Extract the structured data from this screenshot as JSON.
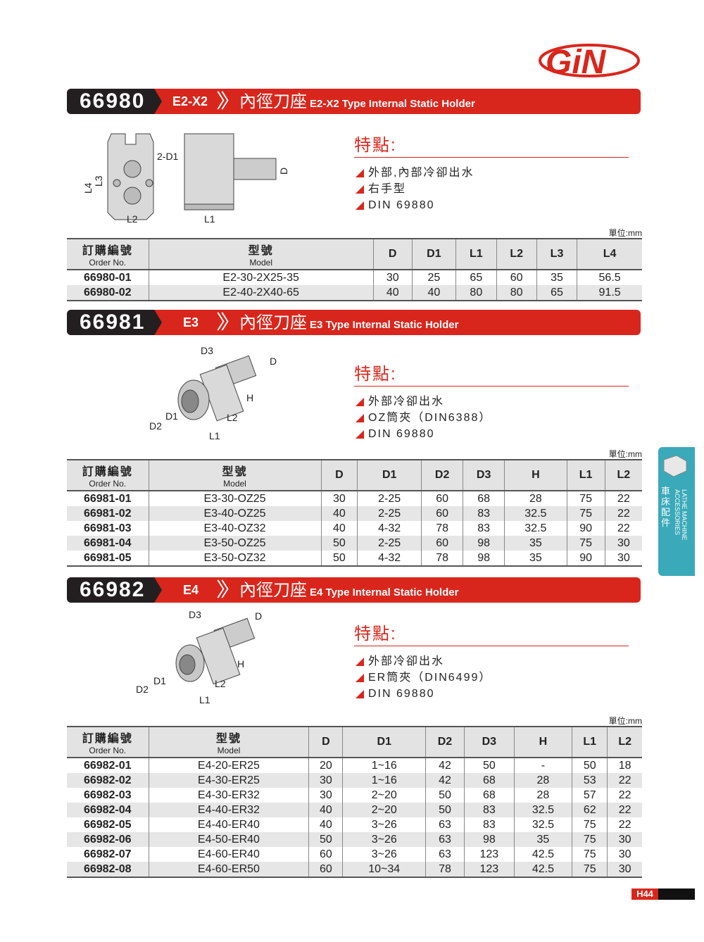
{
  "brand": {
    "logo": "GiN"
  },
  "sections": [
    {
      "number": "66980",
      "code": "E2-X2",
      "title_cn": "內徑刀座",
      "title_en": "E2-X2 Type Internal Static Holder",
      "features_title": "特點:",
      "features": [
        "外部,內部冷卻出水",
        "右手型",
        "DIN 69880"
      ],
      "diagram_labels": [
        "2-D1",
        "L4",
        "L3",
        "L2",
        "L1",
        "D"
      ],
      "unit": "單位:mm",
      "columns": [
        {
          "cn": "訂購編號",
          "en": "Order No."
        },
        {
          "cn": "型號",
          "en": "Model"
        },
        "D",
        "D1",
        "L1",
        "L2",
        "L3",
        "L4"
      ],
      "rows": [
        [
          "66980-01",
          "E2-30-2X25-35",
          "30",
          "25",
          "65",
          "60",
          "35",
          "56.5"
        ],
        [
          "66980-02",
          "E2-40-2X40-65",
          "40",
          "40",
          "80",
          "80",
          "65",
          "91.5"
        ]
      ]
    },
    {
      "number": "66981",
      "code": "E3",
      "title_cn": "內徑刀座",
      "title_en": "E3 Type Internal Static Holder",
      "features_title": "特點:",
      "features": [
        "外部冷卻出水",
        "OZ筒夾（DIN6388）",
        "DIN 69880"
      ],
      "diagram_labels": [
        "D3",
        "D",
        "H",
        "D1",
        "L2",
        "D2",
        "L1"
      ],
      "unit": "單位:mm",
      "columns": [
        {
          "cn": "訂購編號",
          "en": "Order No."
        },
        {
          "cn": "型號",
          "en": "Model"
        },
        "D",
        "D1",
        "D2",
        "D3",
        "H",
        "L1",
        "L2"
      ],
      "rows": [
        [
          "66981-01",
          "E3-30-OZ25",
          "30",
          "2-25",
          "60",
          "68",
          "28",
          "75",
          "22"
        ],
        [
          "66981-02",
          "E3-40-OZ25",
          "40",
          "2-25",
          "60",
          "83",
          "32.5",
          "75",
          "22"
        ],
        [
          "66981-03",
          "E3-40-OZ32",
          "40",
          "4-32",
          "78",
          "83",
          "32.5",
          "90",
          "22"
        ],
        [
          "66981-04",
          "E3-50-OZ25",
          "50",
          "2-25",
          "60",
          "98",
          "35",
          "75",
          "30"
        ],
        [
          "66981-05",
          "E3-50-OZ32",
          "50",
          "4-32",
          "78",
          "98",
          "35",
          "90",
          "30"
        ]
      ]
    },
    {
      "number": "66982",
      "code": "E4",
      "title_cn": "內徑刀座",
      "title_en": "E4 Type Internal Static Holder",
      "features_title": "特點:",
      "features": [
        "外部冷卻出水",
        "ER筒夾（DIN6499）",
        "DIN 69880"
      ],
      "diagram_labels": [
        "D3",
        "D",
        "H",
        "D1",
        "L2",
        "D2",
        "L1"
      ],
      "unit": "單位:mm",
      "columns": [
        {
          "cn": "訂購編號",
          "en": "Order No."
        },
        {
          "cn": "型號",
          "en": "Model"
        },
        "D",
        "D1",
        "D2",
        "D3",
        "H",
        "L1",
        "L2"
      ],
      "rows": [
        [
          "66982-01",
          "E4-20-ER25",
          "20",
          "1~16",
          "42",
          "50",
          "-",
          "50",
          "18"
        ],
        [
          "66982-02",
          "E4-30-ER25",
          "30",
          "1~16",
          "42",
          "68",
          "28",
          "53",
          "22"
        ],
        [
          "66982-03",
          "E4-30-ER32",
          "30",
          "2~20",
          "50",
          "68",
          "28",
          "57",
          "22"
        ],
        [
          "66982-04",
          "E4-40-ER32",
          "40",
          "2~20",
          "50",
          "83",
          "32.5",
          "62",
          "22"
        ],
        [
          "66982-05",
          "E4-40-ER40",
          "40",
          "3~26",
          "63",
          "83",
          "32.5",
          "75",
          "22"
        ],
        [
          "66982-06",
          "E4-50-ER40",
          "50",
          "3~26",
          "63",
          "98",
          "35",
          "75",
          "30"
        ],
        [
          "66982-07",
          "E4-60-ER40",
          "60",
          "3~26",
          "63",
          "123",
          "42.5",
          "75",
          "30"
        ],
        [
          "66982-08",
          "E4-60-ER50",
          "60",
          "10~34",
          "78",
          "123",
          "42.5",
          "75",
          "30"
        ]
      ]
    }
  ],
  "side_tab": {
    "cn": "車床配件",
    "en": "LATHE MACHINE ACCESSORIES"
  },
  "page_number": "H44",
  "colors": {
    "accent": "#d9261c",
    "dark": "#231f20",
    "side_tab": "#3aa9b9"
  }
}
